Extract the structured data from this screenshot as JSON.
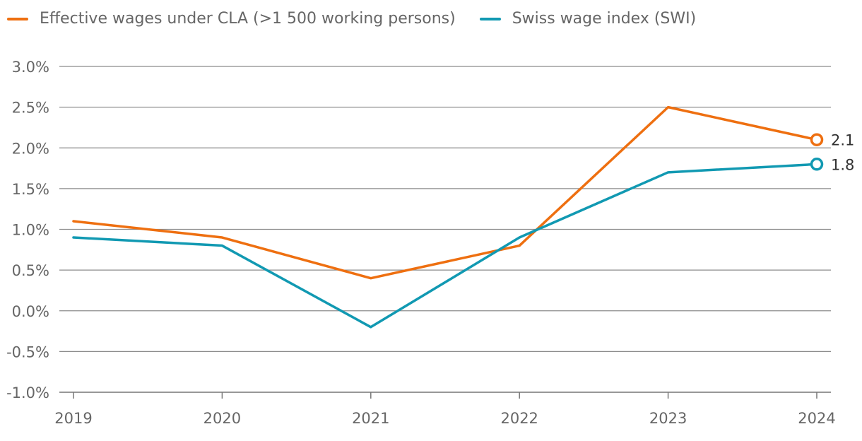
{
  "chart_data": {
    "type": "line",
    "title": "",
    "xlabel": "",
    "ylabel": "",
    "x": [
      "2019",
      "2020",
      "2021",
      "2022",
      "2023",
      "2024"
    ],
    "ylim": [
      -1.0,
      3.0
    ],
    "yticks": [
      3.0,
      2.5,
      2.0,
      1.5,
      1.0,
      0.5,
      0.0,
      -0.5,
      -1.0
    ],
    "ytick_labels": [
      "3.0%",
      "2.5%",
      "2.0%",
      "1.5%",
      "1.0%",
      "0.5%",
      "0.0%",
      "-0.5%",
      "-1.0%"
    ],
    "grid": true,
    "legend_position": "top-left",
    "series": [
      {
        "name": "Effective wages under CLA (>1 500 working persons)",
        "color": "#EE6F10",
        "values": [
          1.1,
          0.9,
          0.4,
          0.8,
          2.5,
          2.1
        ],
        "end_label": "2.1"
      },
      {
        "name": "Swiss wage index (SWI)",
        "color": "#1199B2",
        "values": [
          0.9,
          0.8,
          -0.2,
          0.9,
          1.7,
          1.8
        ],
        "end_label": "1.8"
      }
    ]
  },
  "legend": {
    "items": [
      {
        "label": "Effective wages under CLA (>1 500 working persons)",
        "color": "#EE6F10"
      },
      {
        "label": "Swiss wage index (SWI)",
        "color": "#1199B2"
      }
    ]
  }
}
